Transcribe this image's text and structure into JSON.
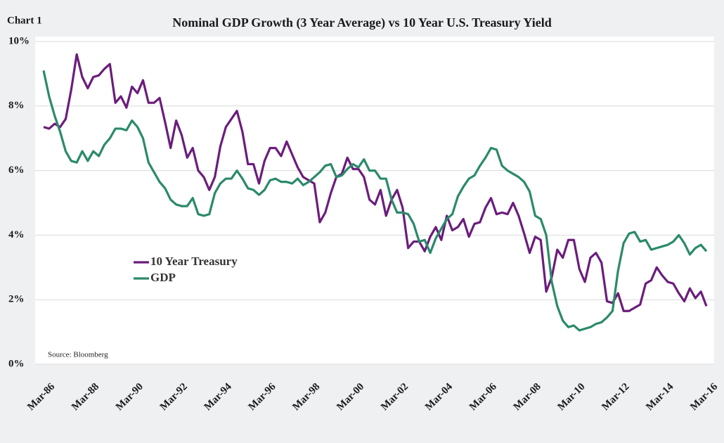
{
  "chart_data": {
    "type": "line",
    "label": "Chart 1",
    "title": "Nominal GDP Growth (3 Year Average) vs 10 Year U.S. Treasury Yield",
    "source": "Source: Bloomberg",
    "categories": [
      "Mar-86",
      null,
      null,
      null,
      null,
      null,
      null,
      null,
      "Mar-88",
      null,
      null,
      null,
      null,
      null,
      null,
      null,
      "Mar-90",
      null,
      null,
      null,
      null,
      null,
      null,
      null,
      "Mar-92",
      null,
      null,
      null,
      null,
      null,
      null,
      null,
      "Mar-94",
      null,
      null,
      null,
      null,
      null,
      null,
      null,
      "Mar-96",
      null,
      null,
      null,
      null,
      null,
      null,
      null,
      "Mar-98",
      null,
      null,
      null,
      null,
      null,
      null,
      null,
      "Mar-00",
      null,
      null,
      null,
      null,
      null,
      null,
      null,
      "Mar-02",
      null,
      null,
      null,
      null,
      null,
      null,
      null,
      "Mar-04",
      null,
      null,
      null,
      null,
      null,
      null,
      null,
      "Mar-06",
      null,
      null,
      null,
      null,
      null,
      null,
      null,
      "Mar-08",
      null,
      null,
      null,
      null,
      null,
      null,
      null,
      "Mar-10",
      null,
      null,
      null,
      null,
      null,
      null,
      null,
      "Mar-12",
      null,
      null,
      null,
      null,
      null,
      null,
      null,
      "Mar-14",
      null,
      null,
      null,
      null,
      null,
      null,
      null,
      "Mar-16"
    ],
    "series": [
      {
        "name": "10 Year Treasury",
        "color": "#6b1d7c",
        "values": [
          7.35,
          7.3,
          7.45,
          7.35,
          7.6,
          8.5,
          9.6,
          8.9,
          8.55,
          8.9,
          8.95,
          9.15,
          9.3,
          8.1,
          8.3,
          7.95,
          8.6,
          8.4,
          8.8,
          8.1,
          8.1,
          8.25,
          7.5,
          6.7,
          7.55,
          7.1,
          6.4,
          6.7,
          6.0,
          5.8,
          5.4,
          5.8,
          6.75,
          7.35,
          7.6,
          7.85,
          7.2,
          6.2,
          6.2,
          5.6,
          6.3,
          6.7,
          6.7,
          6.45,
          6.9,
          6.5,
          6.1,
          5.8,
          5.7,
          5.6,
          4.4,
          4.7,
          5.3,
          5.8,
          5.9,
          6.4,
          6.05,
          6.05,
          5.8,
          5.1,
          4.95,
          5.4,
          4.6,
          5.1,
          5.4,
          4.85,
          3.6,
          3.8,
          3.8,
          3.5,
          3.95,
          4.25,
          3.85,
          4.6,
          4.15,
          4.25,
          4.5,
          3.95,
          4.35,
          4.4,
          4.85,
          5.15,
          4.65,
          4.7,
          4.65,
          5.0,
          4.6,
          4.05,
          3.45,
          3.95,
          3.85,
          2.25,
          2.7,
          3.55,
          3.3,
          3.85,
          3.85,
          2.95,
          2.55,
          3.3,
          3.45,
          3.15,
          1.95,
          1.9,
          2.2,
          1.65,
          1.65,
          1.75,
          1.85,
          2.5,
          2.6,
          3.0,
          2.75,
          2.55,
          2.5,
          2.2,
          1.95,
          2.35,
          2.05,
          2.25,
          1.8
        ]
      },
      {
        "name": "GDP",
        "color": "#2a8a6a",
        "values": [
          9.1,
          8.3,
          7.7,
          7.2,
          6.6,
          6.3,
          6.25,
          6.6,
          6.3,
          6.6,
          6.45,
          6.8,
          7.0,
          7.3,
          7.3,
          7.25,
          7.55,
          7.35,
          7.0,
          6.25,
          5.95,
          5.65,
          5.45,
          5.1,
          4.95,
          4.9,
          4.9,
          5.15,
          4.65,
          4.6,
          4.65,
          5.3,
          5.6,
          5.75,
          5.75,
          6.0,
          5.75,
          5.45,
          5.4,
          5.25,
          5.4,
          5.7,
          5.75,
          5.65,
          5.65,
          5.6,
          5.75,
          5.55,
          5.65,
          5.8,
          5.95,
          6.15,
          6.2,
          5.8,
          5.85,
          6.05,
          6.2,
          6.1,
          6.35,
          6.0,
          6.0,
          5.75,
          5.75,
          5.1,
          4.7,
          4.7,
          4.65,
          4.35,
          3.8,
          3.85,
          3.45,
          3.9,
          4.2,
          4.5,
          4.65,
          5.2,
          5.5,
          5.75,
          5.85,
          6.15,
          6.4,
          6.7,
          6.65,
          6.15,
          6.0,
          5.9,
          5.8,
          5.65,
          5.35,
          4.6,
          4.5,
          4.0,
          2.55,
          1.8,
          1.35,
          1.15,
          1.2,
          1.05,
          1.1,
          1.15,
          1.25,
          1.3,
          1.45,
          1.65,
          2.9,
          3.75,
          4.05,
          4.1,
          3.8,
          3.85,
          3.55,
          3.6,
          3.65,
          3.7,
          3.8,
          4.0,
          3.75,
          3.4,
          3.6,
          3.7,
          3.5
        ]
      }
    ],
    "ylim": [
      0,
      10
    ],
    "yticks": [
      {
        "value": 0,
        "label": "0%"
      },
      {
        "value": 2,
        "label": "2%"
      },
      {
        "value": 4,
        "label": "4%"
      },
      {
        "value": 6,
        "label": "6%"
      },
      {
        "value": 8,
        "label": "8%"
      },
      {
        "value": 10,
        "label": "10%"
      }
    ],
    "grid": true,
    "legend": "left"
  }
}
